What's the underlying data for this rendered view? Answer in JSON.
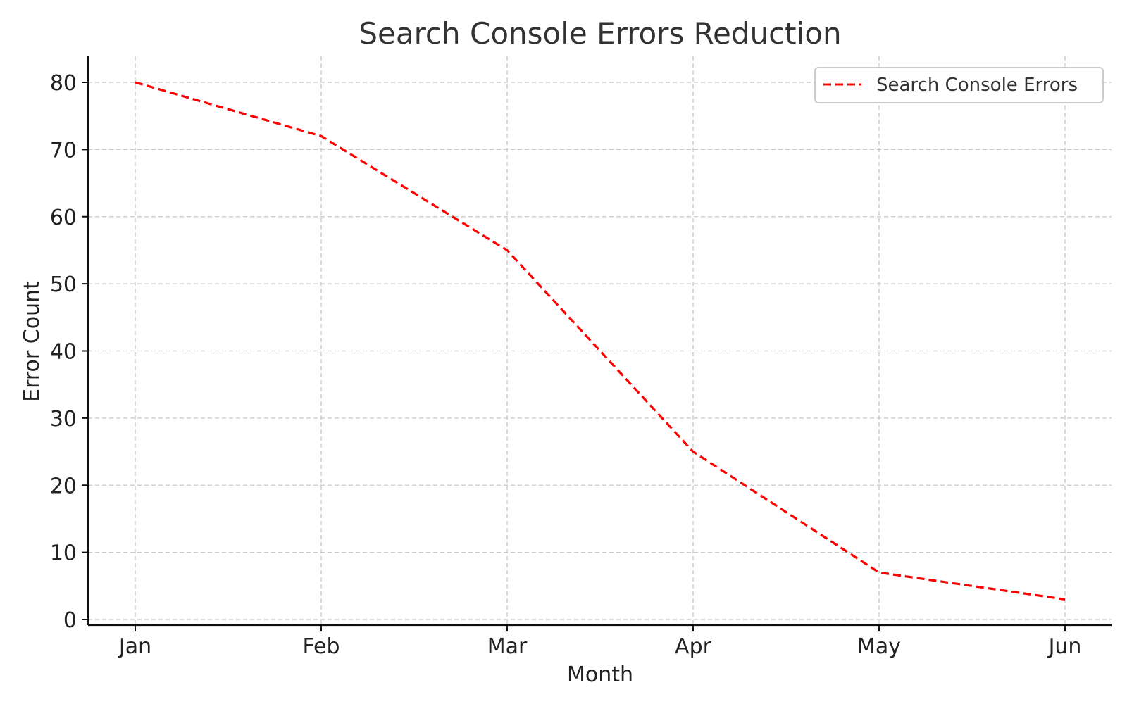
{
  "chart_data": {
    "type": "line",
    "title": "Search Console Errors Reduction",
    "xlabel": "Month",
    "ylabel": "Error Count",
    "categories": [
      "Jan",
      "Feb",
      "Mar",
      "Apr",
      "May",
      "Jun"
    ],
    "series": [
      {
        "name": "Search Console Errors",
        "values": [
          80,
          72,
          55,
          25,
          7,
          3
        ],
        "color": "#ff0000",
        "line_style": "dashed"
      }
    ],
    "ylim": [
      0,
      80
    ],
    "yticks": [
      0,
      10,
      20,
      30,
      40,
      50,
      60,
      70,
      80
    ],
    "grid": true,
    "legend_position": "top-right"
  }
}
